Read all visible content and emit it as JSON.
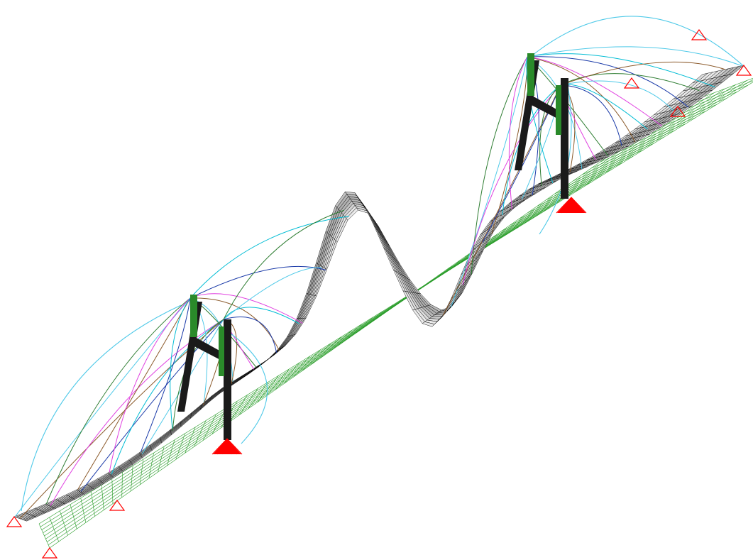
{
  "view": {
    "background": "#ffffff",
    "mode": "deformed-shape"
  },
  "colors": {
    "deck_fill": "#d8d8d8",
    "deck_shade": "#b8b8b8",
    "deck_mesh": "#000000",
    "undeformed_mesh": "#2a9d2a",
    "tower": "#1a1a1a",
    "tower_brace": "#2a8a2a",
    "support": "#ff0000",
    "cable_colors": [
      "#4ec9e8",
      "#2e7d32",
      "#8b5a2b",
      "#e040e0",
      "#1a3aa8",
      "#00bcd4"
    ]
  },
  "icons": {
    "support_symbol": "triangle-pin-support-icon",
    "tower_base_symbol": "fixed-support-icon"
  }
}
